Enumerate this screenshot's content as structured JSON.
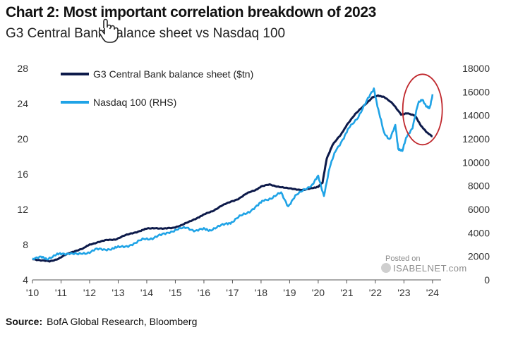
{
  "title": "Chart 2: Most important correlation breakdown of 2023",
  "subtitle": "G3 Central Bank balance sheet vs Nasdaq 100",
  "source_label": "Source:",
  "source_text": "BofA Global Research, Bloomberg",
  "watermark": {
    "posted": "Posted on",
    "brand": "ISABELNET.com"
  },
  "colors": {
    "balance_sheet": "#0d1a4a",
    "nasdaq": "#1fa3e6",
    "highlight_circle": "#c0282d"
  },
  "chart_data": {
    "type": "line",
    "title": "Chart 2: Most important correlation breakdown of 2023",
    "subtitle": "G3 Central Bank balance sheet vs Nasdaq 100",
    "xlim": [
      2010,
      2024.3
    ],
    "x_ticks": [
      2010,
      2011,
      2012,
      2013,
      2014,
      2015,
      2016,
      2017,
      2018,
      2019,
      2020,
      2021,
      2022,
      2023,
      2024
    ],
    "x_tick_labels": [
      "'10",
      "'11",
      "'12",
      "'13",
      "'14",
      "'15",
      "'16",
      "'17",
      "'18",
      "'19",
      "'20",
      "'21",
      "'22",
      "'23",
      "'24"
    ],
    "y_left": {
      "lim": [
        4,
        28
      ],
      "ticks": [
        4,
        8,
        12,
        16,
        20,
        24,
        28
      ]
    },
    "y_right": {
      "lim": [
        0,
        18000
      ],
      "ticks": [
        0,
        2000,
        4000,
        6000,
        8000,
        10000,
        12000,
        14000,
        16000,
        18000
      ]
    },
    "legend_position": "top-left",
    "grid": false,
    "series": [
      {
        "name": "G3 Central Bank balance sheet ($tn)",
        "axis": "left",
        "color": "#0d1a4a",
        "points": [
          [
            2010.0,
            6.4
          ],
          [
            2010.3,
            6.2
          ],
          [
            2010.6,
            6.1
          ],
          [
            2010.9,
            6.4
          ],
          [
            2011.2,
            6.9
          ],
          [
            2011.5,
            7.3
          ],
          [
            2011.8,
            7.6
          ],
          [
            2012.0,
            8.0
          ],
          [
            2012.3,
            8.3
          ],
          [
            2012.6,
            8.5
          ],
          [
            2012.9,
            8.6
          ],
          [
            2013.2,
            9.0
          ],
          [
            2013.5,
            9.3
          ],
          [
            2013.8,
            9.6
          ],
          [
            2014.0,
            9.8
          ],
          [
            2014.3,
            9.9
          ],
          [
            2014.6,
            9.8
          ],
          [
            2014.9,
            9.9
          ],
          [
            2015.2,
            10.2
          ],
          [
            2015.5,
            10.6
          ],
          [
            2015.8,
            11.1
          ],
          [
            2016.0,
            11.4
          ],
          [
            2016.3,
            11.8
          ],
          [
            2016.6,
            12.4
          ],
          [
            2016.9,
            12.8
          ],
          [
            2017.2,
            13.2
          ],
          [
            2017.5,
            13.8
          ],
          [
            2017.8,
            14.2
          ],
          [
            2018.0,
            14.6
          ],
          [
            2018.3,
            14.8
          ],
          [
            2018.6,
            14.6
          ],
          [
            2018.9,
            14.4
          ],
          [
            2019.2,
            14.3
          ],
          [
            2019.5,
            14.2
          ],
          [
            2019.8,
            14.4
          ],
          [
            2020.0,
            14.6
          ],
          [
            2020.15,
            15.0
          ],
          [
            2020.3,
            17.8
          ],
          [
            2020.5,
            19.3
          ],
          [
            2020.8,
            20.5
          ],
          [
            2021.0,
            21.6
          ],
          [
            2021.3,
            22.8
          ],
          [
            2021.6,
            23.8
          ],
          [
            2021.9,
            24.7
          ],
          [
            2022.1,
            24.9
          ],
          [
            2022.3,
            24.8
          ],
          [
            2022.6,
            24.0
          ],
          [
            2022.9,
            22.8
          ],
          [
            2023.1,
            22.9
          ],
          [
            2023.4,
            22.6
          ],
          [
            2023.6,
            21.5
          ],
          [
            2023.8,
            20.7
          ],
          [
            2024.0,
            20.3
          ]
        ]
      },
      {
        "name": "Nasdaq 100 (RHS)",
        "axis": "right",
        "color": "#1fa3e6",
        "points": [
          [
            2010.0,
            1850
          ],
          [
            2010.3,
            1900
          ],
          [
            2010.5,
            1800
          ],
          [
            2010.8,
            2100
          ],
          [
            2011.0,
            2200
          ],
          [
            2011.3,
            2300
          ],
          [
            2011.6,
            2150
          ],
          [
            2011.9,
            2300
          ],
          [
            2012.2,
            2600
          ],
          [
            2012.5,
            2550
          ],
          [
            2012.8,
            2700
          ],
          [
            2013.0,
            2750
          ],
          [
            2013.3,
            2900
          ],
          [
            2013.6,
            3100
          ],
          [
            2013.9,
            3500
          ],
          [
            2014.2,
            3550
          ],
          [
            2014.5,
            3800
          ],
          [
            2014.8,
            4100
          ],
          [
            2015.1,
            4300
          ],
          [
            2015.4,
            4450
          ],
          [
            2015.7,
            4200
          ],
          [
            2016.0,
            4300
          ],
          [
            2016.2,
            4250
          ],
          [
            2016.5,
            4500
          ],
          [
            2016.8,
            4800
          ],
          [
            2017.0,
            4950
          ],
          [
            2017.3,
            5450
          ],
          [
            2017.6,
            5850
          ],
          [
            2017.9,
            6350
          ],
          [
            2018.1,
            6800
          ],
          [
            2018.4,
            7000
          ],
          [
            2018.7,
            7400
          ],
          [
            2018.95,
            6300
          ],
          [
            2019.2,
            7100
          ],
          [
            2019.5,
            7700
          ],
          [
            2019.8,
            8100
          ],
          [
            2020.0,
            8800
          ],
          [
            2020.2,
            7200
          ],
          [
            2020.4,
            9500
          ],
          [
            2020.6,
            11000
          ],
          [
            2020.9,
            12100
          ],
          [
            2021.1,
            13000
          ],
          [
            2021.4,
            13900
          ],
          [
            2021.7,
            15200
          ],
          [
            2021.95,
            16300
          ],
          [
            2022.1,
            14500
          ],
          [
            2022.3,
            12500
          ],
          [
            2022.5,
            12000
          ],
          [
            2022.7,
            13100
          ],
          [
            2022.8,
            11200
          ],
          [
            2022.95,
            11000
          ],
          [
            2023.1,
            12200
          ],
          [
            2023.3,
            13000
          ],
          [
            2023.5,
            15000
          ],
          [
            2023.65,
            15400
          ],
          [
            2023.8,
            14700
          ],
          [
            2023.9,
            14600
          ],
          [
            2024.0,
            15800
          ]
        ]
      }
    ],
    "annotations": [
      {
        "type": "ellipse",
        "x": 2023.65,
        "y_right": 14500
      }
    ]
  }
}
